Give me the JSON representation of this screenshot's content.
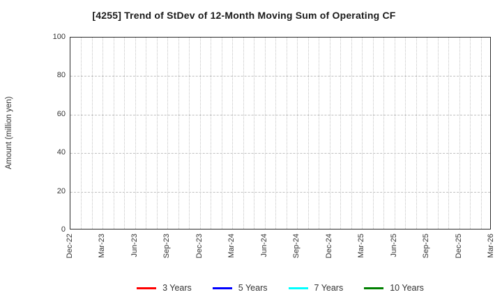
{
  "chart_data": {
    "type": "line",
    "title": "[4255]  Trend of StDev of 12-Month Moving Sum of Operating CF",
    "xlabel": "",
    "ylabel": "Amount (million yen)",
    "ylim": [
      0,
      100
    ],
    "yticks": [
      0,
      20,
      40,
      60,
      80,
      100
    ],
    "xticklabels": [
      "Dec-22",
      "Mar-23",
      "Jun-23",
      "Sep-23",
      "Dec-23",
      "Mar-24",
      "Jun-24",
      "Sep-24",
      "Dec-24",
      "Mar-25",
      "Jun-25",
      "Sep-25",
      "Dec-25",
      "Mar-26"
    ],
    "x_minor_gridlines_total": 40,
    "grid": true,
    "legend_position": "bottom",
    "axis_color": "#2a2a2a",
    "grid_color": "#c4c4c4",
    "text_color": "#333333",
    "series": [
      {
        "name": "3 Years",
        "color": "#ff0000",
        "values": []
      },
      {
        "name": "5 Years",
        "color": "#0000ff",
        "values": []
      },
      {
        "name": "7 Years",
        "color": "#00ffff",
        "values": []
      },
      {
        "name": "10 Years",
        "color": "#008000",
        "values": []
      }
    ],
    "note": "Chart area is empty: no data lines are drawn, only axes, grid and legend."
  }
}
